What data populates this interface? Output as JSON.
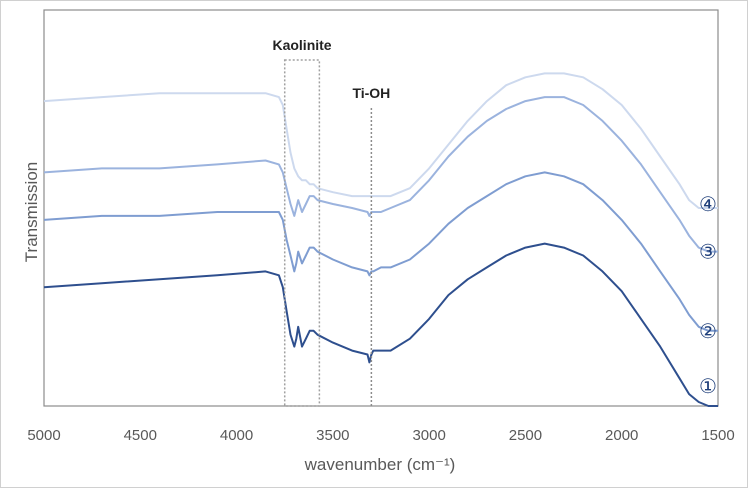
{
  "chart_data": {
    "type": "line",
    "title": "",
    "xlabel": "wavenumber (cm⁻¹)",
    "ylabel": "Transmission",
    "xlim": [
      5000,
      1500
    ],
    "x_reversed": true,
    "xticks": [
      "5000",
      "4500",
      "4000",
      "3500",
      "3000",
      "2500",
      "2000",
      "1500"
    ],
    "ylim": [
      0,
      100
    ],
    "grid": false,
    "legend": "none",
    "annotations": [
      {
        "label": "Kaolinite",
        "type": "dotted-box",
        "x_range": [
          3750,
          3570
        ]
      },
      {
        "label": "Ti-OH",
        "type": "dotted-line",
        "x": 3300
      }
    ],
    "series": [
      {
        "name": "①",
        "color": "#2e4f8e",
        "x": [
          5000,
          4700,
          4400,
          4100,
          3850,
          3780,
          3760,
          3740,
          3720,
          3700,
          3690,
          3680,
          3660,
          3640,
          3620,
          3600,
          3580,
          3500,
          3400,
          3320,
          3310,
          3300,
          3290,
          3250,
          3200,
          3100,
          3000,
          2900,
          2800,
          2700,
          2600,
          2500,
          2400,
          2300,
          2200,
          2100,
          2000,
          1900,
          1800,
          1700,
          1650,
          1600,
          1550,
          1500
        ],
        "y": [
          30,
          31,
          32,
          33,
          34,
          33,
          30,
          24,
          18,
          15,
          17,
          20,
          15,
          17,
          19,
          19,
          18,
          16,
          14,
          13,
          11,
          13,
          14,
          14,
          14,
          17,
          22,
          28,
          32,
          35,
          38,
          40,
          41,
          40,
          38,
          34,
          29,
          22,
          15,
          7,
          3,
          1,
          0,
          0
        ],
        "marker_label": "①",
        "marker_y": 5
      },
      {
        "name": "②",
        "color": "#7f9dd1",
        "x": [
          5000,
          4700,
          4400,
          4100,
          3850,
          3780,
          3760,
          3740,
          3720,
          3700,
          3690,
          3680,
          3660,
          3640,
          3620,
          3600,
          3580,
          3500,
          3400,
          3320,
          3310,
          3300,
          3290,
          3250,
          3200,
          3100,
          3000,
          2900,
          2800,
          2700,
          2600,
          2500,
          2400,
          2300,
          2200,
          2100,
          2000,
          1900,
          1800,
          1700,
          1650,
          1600,
          1550,
          1500
        ],
        "y": [
          47,
          48,
          48,
          49,
          49,
          49,
          47,
          42,
          38,
          34,
          36,
          39,
          36,
          38,
          40,
          40,
          39,
          37,
          35,
          34,
          33,
          34,
          34,
          35,
          35,
          37,
          41,
          46,
          50,
          53,
          56,
          58,
          59,
          58,
          56,
          52,
          47,
          41,
          34,
          27,
          23,
          20,
          19,
          19
        ],
        "marker_label": "②",
        "marker_y": 19
      },
      {
        "name": "③",
        "color": "#9bb3de",
        "x": [
          5000,
          4700,
          4400,
          4100,
          3850,
          3780,
          3760,
          3740,
          3720,
          3700,
          3690,
          3680,
          3660,
          3640,
          3620,
          3600,
          3580,
          3500,
          3400,
          3320,
          3310,
          3300,
          3290,
          3250,
          3200,
          3100,
          3000,
          2900,
          2800,
          2700,
          2600,
          2500,
          2400,
          2300,
          2200,
          2100,
          2000,
          1900,
          1800,
          1700,
          1650,
          1600,
          1550,
          1500
        ],
        "y": [
          59,
          60,
          60,
          61,
          62,
          61,
          59,
          55,
          51,
          48,
          50,
          52,
          49,
          51,
          53,
          53,
          52,
          51,
          50,
          49,
          48,
          49,
          49,
          49,
          50,
          52,
          57,
          63,
          68,
          72,
          75,
          77,
          78,
          78,
          76,
          72,
          67,
          61,
          54,
          47,
          43,
          40,
          39,
          39
        ],
        "marker_label": "③",
        "marker_y": 39
      },
      {
        "name": "④",
        "color": "#cdd9ee",
        "x": [
          5000,
          4700,
          4400,
          4100,
          3850,
          3780,
          3760,
          3740,
          3720,
          3700,
          3690,
          3680,
          3660,
          3640,
          3620,
          3600,
          3580,
          3500,
          3400,
          3320,
          3310,
          3300,
          3290,
          3250,
          3200,
          3100,
          3000,
          2900,
          2800,
          2700,
          2600,
          2500,
          2400,
          2300,
          2200,
          2100,
          2000,
          1900,
          1800,
          1700,
          1650,
          1600,
          1550,
          1500
        ],
        "y": [
          77,
          78,
          79,
          79,
          79,
          78,
          76,
          70,
          64,
          60,
          59,
          58,
          57,
          57,
          56,
          56,
          55,
          54,
          53,
          53,
          53,
          53,
          53,
          53,
          53,
          55,
          60,
          66,
          72,
          77,
          81,
          83,
          84,
          84,
          83,
          80,
          76,
          70,
          63,
          56,
          52,
          50,
          50,
          50
        ],
        "marker_label": "④",
        "marker_y": 51
      }
    ]
  }
}
